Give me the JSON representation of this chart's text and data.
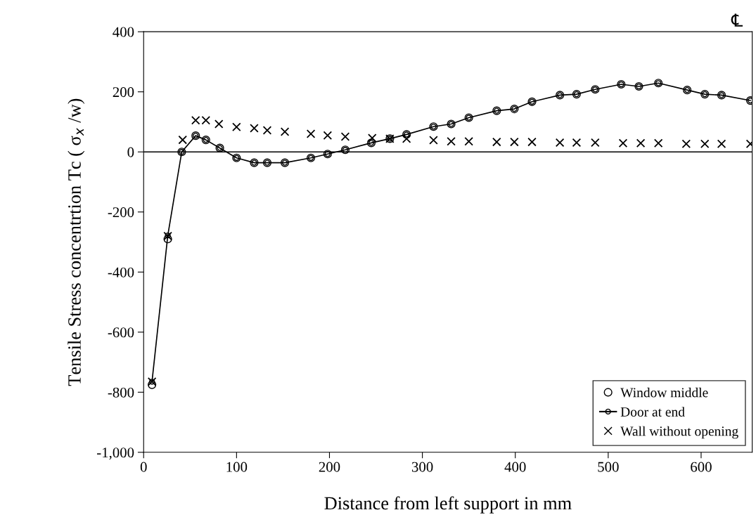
{
  "chart_data": {
    "type": "line",
    "xlabel": "Distance from left support in mm",
    "ylabel": "Tensile Stress concentrtion Tc ( σ$_{x}$ /w)",
    "annotations": [
      "℄"
    ],
    "xlim": [
      0,
      655
    ],
    "xticks": [
      0,
      100,
      200,
      300,
      400,
      500,
      600
    ],
    "ylim": [
      -1000,
      400
    ],
    "yticks": [
      {
        "value": -1000,
        "label": "-1,000"
      },
      {
        "value": -800,
        "label": "-800"
      },
      {
        "value": -600,
        "label": "-600"
      },
      {
        "value": -400,
        "label": "-400"
      },
      {
        "value": -200,
        "label": "-200"
      },
      0,
      200,
      400
    ],
    "ref_lines": [
      {
        "axis": "y",
        "value": 0,
        "color": "#000000",
        "line_style": "solid"
      }
    ],
    "grid": false,
    "legend": "bottom right",
    "series": [
      {
        "name": "Window middle",
        "type": "scatter",
        "marker": "circle",
        "color": "#000000",
        "x": [
          9,
          26,
          41,
          56,
          67,
          82,
          100,
          119,
          133,
          152,
          180,
          198,
          217,
          245,
          265,
          283,
          312,
          331,
          350,
          380,
          399,
          418,
          448,
          466,
          486,
          514,
          533,
          554,
          585,
          604,
          622,
          653
        ],
        "values": [
          -775,
          -290,
          0,
          54,
          40,
          13,
          -20,
          -36,
          -36,
          -36,
          -20,
          -7,
          7,
          30,
          44,
          58,
          84,
          93,
          114,
          137,
          143,
          167,
          189,
          192,
          208,
          225,
          218,
          229,
          206,
          192,
          189,
          171
        ]
      },
      {
        "name": "Door at end",
        "marker": "circle",
        "line_style": "solid",
        "color": "#000000",
        "x": [
          9,
          26,
          41,
          56,
          67,
          82,
          100,
          119,
          133,
          152,
          180,
          198,
          217,
          245,
          265,
          283,
          312,
          331,
          350,
          380,
          399,
          418,
          448,
          466,
          486,
          514,
          533,
          554,
          585,
          604,
          622,
          653
        ],
        "values": [
          -765,
          -278,
          0,
          54,
          40,
          13,
          -20,
          -36,
          -36,
          -36,
          -20,
          -7,
          7,
          30,
          44,
          58,
          84,
          93,
          114,
          137,
          143,
          167,
          189,
          192,
          208,
          225,
          218,
          229,
          206,
          192,
          189,
          171
        ]
      },
      {
        "name": "Wall without opening",
        "type": "scatter",
        "marker": "cross",
        "color": "#000000",
        "x": [
          9,
          26,
          42,
          56,
          67,
          81,
          100,
          119,
          133,
          152,
          180,
          198,
          217,
          246,
          265,
          283,
          312,
          331,
          350,
          380,
          399,
          418,
          448,
          466,
          486,
          516,
          535,
          554,
          584,
          604,
          622,
          653
        ],
        "values": [
          -765,
          -280,
          40,
          105,
          105,
          93,
          83,
          79,
          72,
          67,
          60,
          55,
          51,
          46,
          44,
          44,
          39,
          35,
          35,
          33,
          33,
          33,
          31,
          31,
          31,
          29,
          29,
          29,
          27,
          27,
          27,
          27
        ]
      }
    ]
  }
}
